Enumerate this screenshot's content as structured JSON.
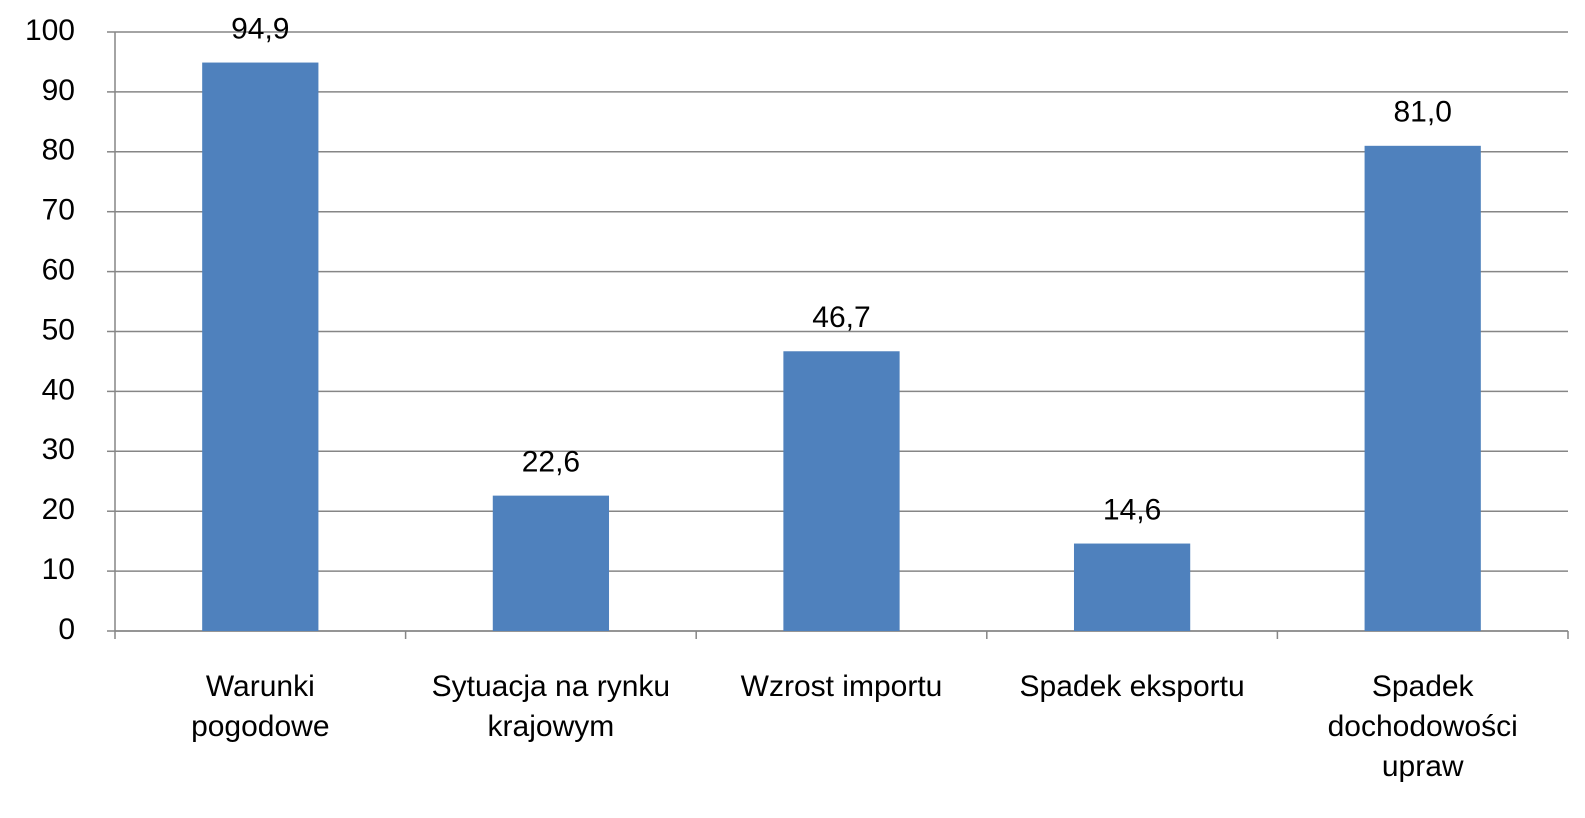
{
  "chart_data": {
    "type": "bar",
    "categories": [
      "Warunki pogodowe",
      "Sytuacja na rynku krajowym",
      "Wzrost importu",
      "Spadek eksportu",
      "Spadek dochodowości upraw"
    ],
    "values": [
      94.9,
      22.6,
      46.7,
      14.6,
      81.0
    ],
    "value_labels": [
      "94,9",
      "22,6",
      "46,7",
      "14,6",
      "81,0"
    ],
    "color": "#4f81bd",
    "ylim": [
      0,
      100
    ],
    "yticks": [
      0,
      10,
      20,
      30,
      40,
      50,
      60,
      70,
      80,
      90,
      100
    ],
    "grid": true
  }
}
